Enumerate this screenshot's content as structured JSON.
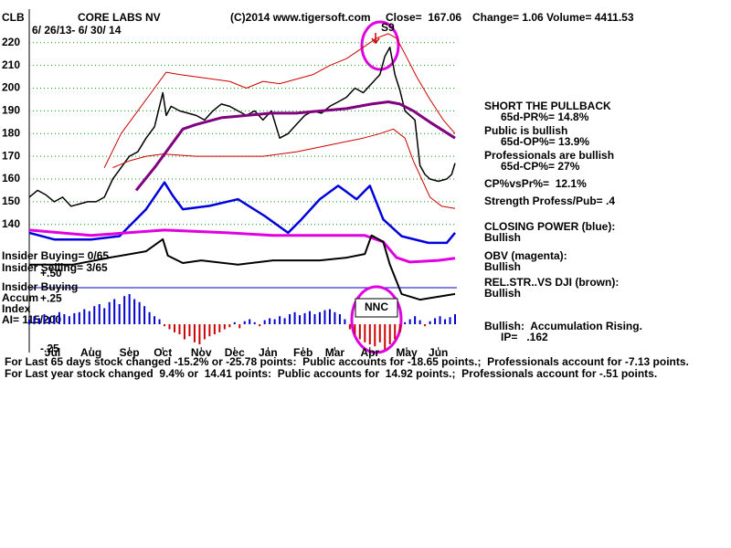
{
  "chart_data": [
    {
      "type": "line",
      "symbol": "CLB",
      "title": "CORE LABS NV",
      "source": "(C)2014 www.tigersoft.com",
      "close": "Close=  167.06",
      "change": "Change= 1.06",
      "volume": "Volume= 4411.53",
      "date_range": "6/ 26/13- 6/ 30/ 14",
      "annotations": [
        "S9",
        "NNC"
      ],
      "notes": [
        "SHORT THE PULLBACK",
        "65d-PR%= 14.8%",
        "Public is bullish",
        "65d-OP%= 13.9%",
        "Professionals are bullish",
        "65d-CP%= 27%",
        "CP%vsPr%=  12.1%",
        "Strength Profess/Pub= .4",
        "CLOSING POWER (blue):",
        "Bullish",
        "OBV (magenta):",
        "Bullish",
        "REL.STR..VS DJI (brown):",
        "Bullish",
        "Bullish:  Accumulation Rising.",
        "IP=   .162"
      ],
      "footer": [
        "For Last 65 days stock changed -15.2% or -25.78 points:  Public accounts for -18.65 points.;  Professionals account for -7.13 points.",
        "For Last year stock changed  9.4% or  14.41 points:  Public accounts for  14.92 points.;  Professionals account for -.51 points."
      ],
      "xlim": [
        0,
        255
      ],
      "xticks": [
        {
          "value": 14,
          "label": "Jul"
        },
        {
          "value": 37,
          "label": "Aug"
        },
        {
          "value": 60,
          "label": "Sep"
        },
        {
          "value": 80,
          "label": "Oct"
        },
        {
          "value": 103,
          "label": "Nov"
        },
        {
          "value": 123,
          "label": "Dec"
        },
        {
          "value": 143,
          "label": "Jan"
        },
        {
          "value": 164,
          "label": "Feb"
        },
        {
          "value": 183,
          "label": "Mar"
        },
        {
          "value": 204,
          "label": "Apr"
        },
        {
          "value": 226,
          "label": "May"
        },
        {
          "value": 245,
          "label": "Jun"
        }
      ],
      "ylim": [
        86,
        234
      ],
      "yticks": [
        140,
        150,
        160,
        170,
        180,
        190,
        200,
        210,
        220
      ],
      "grid": true,
      "grid_color": "#00a000",
      "series": [
        {
          "color": "#000000",
          "width": 1.5,
          "x": [
            0,
            5,
            10,
            15,
            20,
            25,
            30,
            35,
            40,
            45,
            50,
            55,
            60,
            65,
            70,
            75,
            80,
            82,
            85,
            90,
            95,
            100,
            105,
            110,
            115,
            120,
            125,
            130,
            135,
            140,
            145,
            150,
            155,
            160,
            165,
            170,
            175,
            180,
            185,
            190,
            195,
            200,
            205,
            210,
            213,
            216,
            219,
            222,
            225,
            228,
            231,
            234,
            237,
            240,
            245,
            250,
            253,
            255
          ],
          "values": [
            152,
            155,
            153,
            150,
            152,
            148,
            149,
            150,
            150,
            152,
            160,
            165,
            170,
            172,
            178,
            183,
            198,
            188,
            192,
            190,
            189,
            188,
            186,
            190,
            193,
            192,
            190,
            188,
            190,
            186,
            190,
            178,
            180,
            184,
            188,
            190,
            189,
            192,
            194,
            196,
            200,
            198,
            202,
            206,
            214,
            218,
            206,
            199,
            190,
            188,
            186,
            166,
            162,
            160,
            159,
            160,
            162,
            167
          ]
        },
        {
          "color": "#cc0000",
          "width": 1,
          "x": [
            45,
            55,
            65,
            75,
            82,
            90,
            100,
            110,
            120,
            130,
            140,
            150,
            160,
            170,
            180,
            190,
            200,
            208,
            215,
            220,
            225,
            232,
            240,
            248,
            255
          ],
          "values": [
            165,
            180,
            190,
            200,
            207,
            206,
            205,
            204,
            203,
            200,
            203,
            202,
            204,
            206,
            210,
            213,
            218,
            222,
            224,
            222,
            215,
            205,
            195,
            186,
            180
          ]
        },
        {
          "color": "#cc0000",
          "width": 1,
          "x": [
            50,
            60,
            70,
            80,
            100,
            120,
            140,
            160,
            180,
            200,
            210,
            218,
            225,
            230,
            235,
            240,
            247,
            255
          ],
          "values": [
            165,
            168,
            170,
            171,
            170,
            170,
            170,
            172,
            175,
            178,
            180,
            182,
            178,
            168,
            160,
            152,
            148,
            147
          ]
        },
        {
          "color": "#800080",
          "width": 3,
          "x": [
            64,
            75,
            85,
            92,
            100,
            115,
            130,
            145,
            160,
            175,
            190,
            205,
            215,
            222,
            230,
            240,
            255
          ],
          "values": [
            155,
            165,
            175,
            182,
            184,
            187,
            188,
            189,
            189,
            190,
            191,
            193,
            194,
            193,
            190,
            185,
            178
          ]
        }
      ]
    },
    {
      "type": "line",
      "xlim": [
        0,
        255
      ],
      "ylim": [
        0,
        100
      ],
      "series": [
        {
          "color": "#0000dd",
          "width": 2.5,
          "x": [
            0,
            15,
            37,
            54,
            70,
            81,
            86,
            92,
            108,
            125,
            141,
            155,
            163,
            174,
            185,
            196,
            204,
            212,
            223,
            239,
            250,
            255
          ],
          "values": [
            34,
            32,
            32,
            33,
            41,
            49,
            45,
            41,
            42,
            44,
            39,
            34,
            38,
            44,
            48,
            44,
            48,
            38,
            33,
            31,
            31,
            34
          ]
        },
        {
          "color": "#e000e0",
          "width": 3,
          "x": [
            0,
            37,
            81,
            119,
            146,
            174,
            201,
            212,
            220,
            228,
            245,
            255
          ],
          "values": [
            34.8,
            33.2,
            34.8,
            34,
            33.2,
            33.2,
            33.2,
            31.3,
            26.6,
            25.3,
            25.8,
            26.4
          ]
        },
        {
          "color": "#000000",
          "width": 2,
          "x": [
            0,
            26,
            48,
            70,
            80,
            83,
            92,
            103,
            125,
            146,
            174,
            190,
            201,
            205,
            212,
            216,
            223,
            234,
            255
          ],
          "values": [
            24.5,
            24.5,
            26.6,
            28.5,
            32.1,
            27.2,
            25,
            25.8,
            24.5,
            25.8,
            25.8,
            26.6,
            27.7,
            33.2,
            31.3,
            24.5,
            15.8,
            14.1,
            15.8
          ]
        }
      ]
    },
    {
      "type": "bar",
      "labels": [
        "Insider Buying= 0/65",
        "Insider Selling= 3/65",
        "Insider Buying",
        "Accum",
        "Index",
        "AI= 115/200"
      ],
      "xlim": [
        0,
        255
      ],
      "ylim": [
        -0.3,
        0.55
      ],
      "yticks": [
        {
          "value": 0.5,
          "label": "+.50"
        },
        {
          "value": 0.25,
          "label": "+.25"
        },
        {
          "value": -0.25,
          "label": "-.25"
        }
      ],
      "grid": false,
      "color": "#0000cc",
      "negative_color": "#cc0000",
      "x": [
        0,
        3,
        6,
        9,
        12,
        15,
        18,
        21,
        24,
        27,
        30,
        33,
        36,
        39,
        42,
        45,
        48,
        51,
        54,
        57,
        60,
        63,
        66,
        69,
        72,
        75,
        78,
        81,
        84,
        87,
        90,
        93,
        96,
        99,
        102,
        105,
        108,
        111,
        114,
        117,
        120,
        123,
        126,
        129,
        132,
        135,
        138,
        141,
        144,
        147,
        150,
        153,
        156,
        159,
        162,
        165,
        168,
        171,
        174,
        177,
        180,
        183,
        186,
        189,
        192,
        195,
        198,
        201,
        204,
        207,
        210,
        213,
        216,
        219,
        222,
        225,
        228,
        231,
        234,
        237,
        240,
        243,
        246,
        249,
        252,
        255
      ],
      "values": [
        0.05,
        0.08,
        0.06,
        0.1,
        0.07,
        0.09,
        0.12,
        0.1,
        0.08,
        0.11,
        0.12,
        0.15,
        0.13,
        0.18,
        0.2,
        0.16,
        0.22,
        0.25,
        0.2,
        0.28,
        0.3,
        0.25,
        0.22,
        0.18,
        0.12,
        0.08,
        0.05,
        -0.02,
        -0.05,
        -0.08,
        -0.1,
        -0.15,
        -0.12,
        -0.18,
        -0.2,
        -0.15,
        -0.12,
        -0.1,
        -0.08,
        -0.05,
        -0.03,
        0.02,
        -0.04,
        0.03,
        0.05,
        0.02,
        -0.02,
        0.04,
        0.06,
        0.05,
        0.08,
        0.06,
        0.1,
        0.12,
        0.09,
        0.11,
        0.13,
        0.1,
        0.12,
        0.14,
        0.15,
        0.12,
        0.1,
        0.05,
        -0.05,
        -0.1,
        -0.15,
        -0.18,
        -0.2,
        -0.22,
        -0.18,
        -0.25,
        -0.2,
        -0.15,
        -0.08,
        0.02,
        0.05,
        0.08,
        0.04,
        -0.02,
        0.03,
        0.06,
        0.08,
        0.05,
        0.07,
        0.1
      ]
    }
  ]
}
